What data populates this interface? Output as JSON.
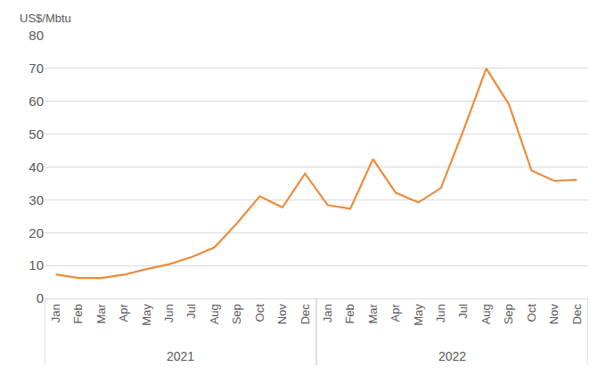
{
  "chart_data": {
    "type": "line",
    "ylabel": "US$/Mbtu",
    "categories": [
      "Jan",
      "Feb",
      "Mar",
      "Apr",
      "May",
      "Jun",
      "Jul",
      "Aug",
      "Sep",
      "Oct",
      "Nov",
      "Dec",
      "Jan",
      "Feb",
      "Mar",
      "Apr",
      "May",
      "Jun",
      "Jul",
      "Aug",
      "Sep",
      "Oct",
      "Nov",
      "Dec"
    ],
    "groups": [
      "2021",
      "2021",
      "2021",
      "2021",
      "2021",
      "2021",
      "2021",
      "2021",
      "2021",
      "2021",
      "2021",
      "2021",
      "2022",
      "2022",
      "2022",
      "2022",
      "2022",
      "2022",
      "2022",
      "2022",
      "2022",
      "2022",
      "2022",
      "2022"
    ],
    "values": [
      7.3,
      6.2,
      6.2,
      7.2,
      8.9,
      10.4,
      12.6,
      15.5,
      22.9,
      31.1,
      27.7,
      38.0,
      28.4,
      27.3,
      42.4,
      32.2,
      29.2,
      33.6,
      51.3,
      70.0,
      59.1,
      38.9,
      35.8,
      36.1
    ],
    "color": "#ed8b3a",
    "ylim": [
      0,
      80
    ],
    "yticks": [
      0,
      10,
      20,
      30,
      40,
      50,
      60,
      70,
      80
    ],
    "grid": true
  }
}
